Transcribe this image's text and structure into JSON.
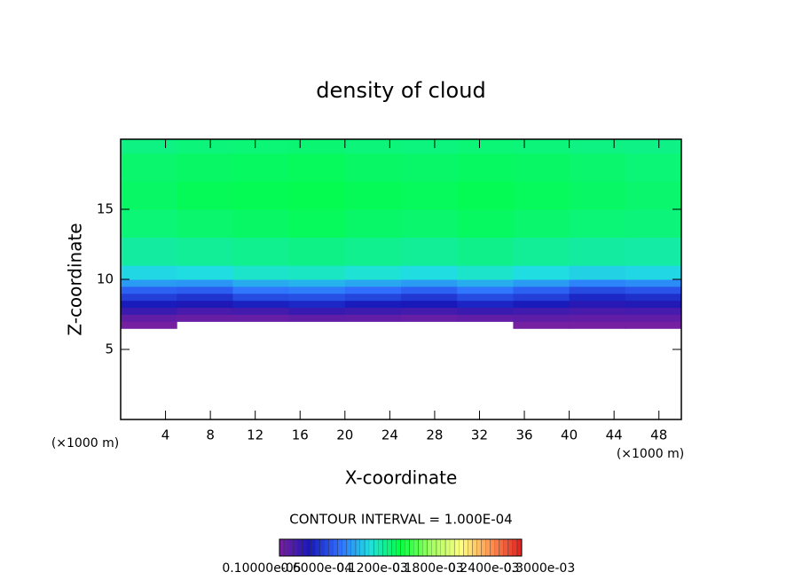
{
  "chart_data": {
    "type": "heatmap",
    "title": "density of cloud",
    "xlabel": "X-coordinate",
    "ylabel": "Z-coordinate",
    "xunit": "(×1000 m)",
    "annotation": "CONTOUR INTERVAL = 1.000E-04",
    "xlim": [
      0,
      50
    ],
    "xticks": [
      4,
      8,
      12,
      16,
      20,
      24,
      28,
      32,
      36,
      40,
      44,
      48
    ],
    "ylim": [
      0,
      20
    ],
    "yticks": [
      5,
      10,
      15
    ],
    "xbins": [
      0,
      5,
      10,
      15,
      20,
      25,
      30,
      35,
      40,
      45,
      50
    ],
    "zbins": [
      6.5,
      7,
      7.5,
      8,
      8.5,
      9,
      9.5,
      10,
      11,
      13,
      15,
      17,
      19,
      20
    ],
    "values": [
      [
        3e-06,
        null,
        null,
        null,
        null,
        null,
        null,
        3e-06,
        3e-06,
        3e-06
      ],
      [
        1e-05,
        8e-06,
        9e-06,
        1.1e-05,
        1e-05,
        9e-06,
        1e-05,
        1.2e-05,
        1e-05,
        1e-05
      ],
      [
        2.5e-05,
        2e-05,
        2.2e-05,
        2.6e-05,
        2.4e-05,
        2.2e-05,
        2.5e-05,
        2.3e-05,
        2e-05,
        2.1e-05
      ],
      [
        4e-05,
        3.6e-05,
        4.2e-05,
        4.5e-05,
        4e-05,
        3.8e-05,
        4.4e-05,
        4e-05,
        3.2e-05,
        3.4e-05
      ],
      [
        5.5e-05,
        5e-05,
        6e-05,
        6.2e-05,
        5.8e-05,
        5.2e-05,
        6e-05,
        5.5e-05,
        4.5e-05,
        4.8e-05
      ],
      [
        7e-05,
        6.8e-05,
        7.8e-05,
        8e-05,
        7.5e-05,
        7e-05,
        7.8e-05,
        7e-05,
        6e-05,
        6.4e-05
      ],
      [
        9e-05,
        8.8e-05,
        9.5e-05,
        9.8e-05,
        9.4e-05,
        9e-05,
        9.6e-05,
        9e-05,
        8.2e-05,
        8.5e-05
      ],
      [
        0.00011,
        0.000112,
        0.000118,
        0.00012,
        0.000116,
        0.000112,
        0.000118,
        0.000112,
        0.000108,
        0.00011
      ],
      [
        0.000128,
        0.00013,
        0.000132,
        0.000134,
        0.000132,
        0.00013,
        0.000133,
        0.00013,
        0.000128,
        0.000127
      ],
      [
        0.000138,
        0.00014,
        0.000142,
        0.000144,
        0.000141,
        0.00014,
        0.000143,
        0.00014,
        0.000138,
        0.000137
      ],
      [
        0.000142,
        0.000145,
        0.000146,
        0.000147,
        0.000145,
        0.000144,
        0.000146,
        0.000144,
        0.000142,
        0.00014
      ],
      [
        0.00014,
        0.000142,
        0.000143,
        0.000144,
        0.000142,
        0.000141,
        0.000143,
        0.000142,
        0.00014,
        0.000138
      ],
      [
        0.000135,
        0.000137,
        0.000138,
        0.000139,
        0.000137,
        0.000136,
        0.000138,
        0.000137,
        0.000135,
        0.000134
      ]
    ],
    "clim": [
      1e-06,
      0.0003
    ],
    "colormap": [
      "#7a1fa0",
      "#1818b8",
      "#3070ff",
      "#20e0e0",
      "#00ff40",
      "#a0ff60",
      "#ffff80",
      "#ff9050",
      "#e02020"
    ],
    "cticks": [
      {
        "value": 1e-06,
        "label": "0.10000e-05"
      },
      {
        "value": 6e-05,
        "label": "0.6000e-04"
      },
      {
        "value": 0.00012,
        "label": "0.1200e-03"
      },
      {
        "value": 0.00018,
        "label": "0.1800e-03"
      },
      {
        "value": 0.00024,
        "label": "0.2400e-03"
      },
      {
        "value": 0.0003,
        "label": "0.3000e-03"
      }
    ]
  }
}
